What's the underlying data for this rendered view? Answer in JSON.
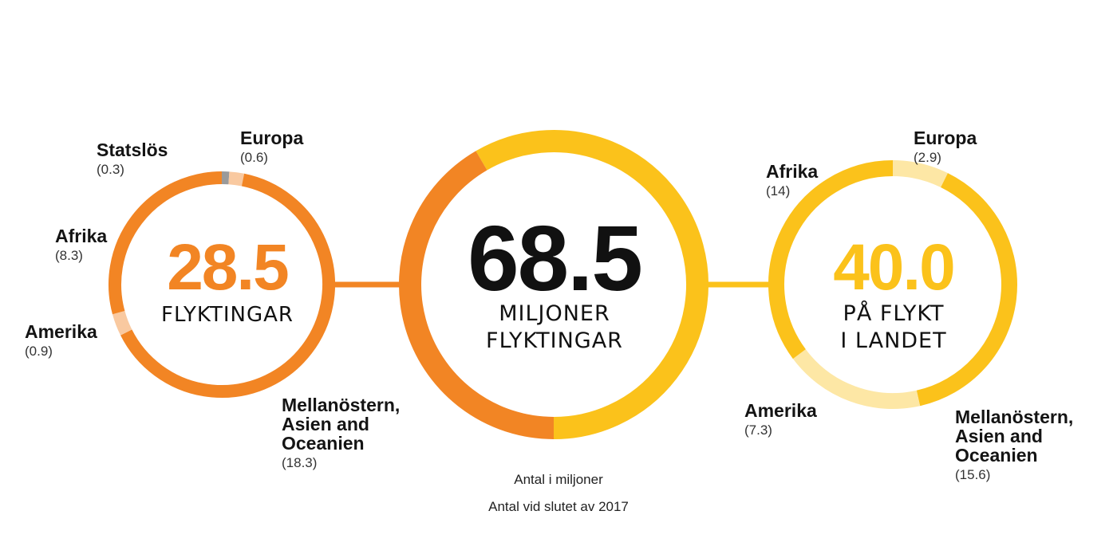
{
  "colors": {
    "orange": "#f28524",
    "orange_light": "#f9c9a0",
    "yellow": "#fbc21b",
    "yellow_light": "#fde7a5",
    "gray": "#9a9a9a",
    "ink": "#111111"
  },
  "chart_data": [
    {
      "type": "pie",
      "center_value": "28.5",
      "center_label": "FLYKTINGAR",
      "slices": [
        {
          "name": "Statslös",
          "value": 0.3,
          "display": "(0.3)",
          "color": "#9a9a9a"
        },
        {
          "name": "Europa",
          "value": 0.6,
          "display": "(0.6)",
          "color": "#f9c9a0"
        },
        {
          "name": "Mellanöstern, Asien and Oceanien",
          "value": 18.3,
          "display": "(18.3)",
          "color": "#f28524"
        },
        {
          "name": "Amerika",
          "value": 0.9,
          "display": "(0.9)",
          "color": "#f9c9a0"
        },
        {
          "name": "Afrika",
          "value": 8.3,
          "display": "(8.3)",
          "color": "#f28524"
        }
      ]
    },
    {
      "type": "pie",
      "center_value": "68.5",
      "center_label_lines": [
        "MILJONER",
        "FLYKTINGAR"
      ],
      "slices": [
        {
          "name": "På flykt i landet",
          "value": 40.0,
          "color": "#fbc21b"
        },
        {
          "name": "Flyktingar",
          "value": 28.5,
          "color": "#f28524"
        }
      ]
    },
    {
      "type": "pie",
      "center_value": "40.0",
      "center_label_lines": [
        "PÅ FLYKT",
        "I LANDET"
      ],
      "slices": [
        {
          "name": "Europa",
          "value": 2.9,
          "display": "(2.9)",
          "color": "#fde7a5"
        },
        {
          "name": "Mellanöstern, Asien and Oceanien",
          "value": 15.6,
          "display": "(15.6)",
          "color": "#fbc21b"
        },
        {
          "name": "Amerika",
          "value": 7.3,
          "display": "(7.3)",
          "color": "#fde7a5"
        },
        {
          "name": "Afrika",
          "value": 14,
          "display": "(14)",
          "color": "#fbc21b"
        }
      ]
    }
  ],
  "notes": {
    "unit": "Antal i miljoner",
    "period": "Antal vid slutet av 2017"
  }
}
